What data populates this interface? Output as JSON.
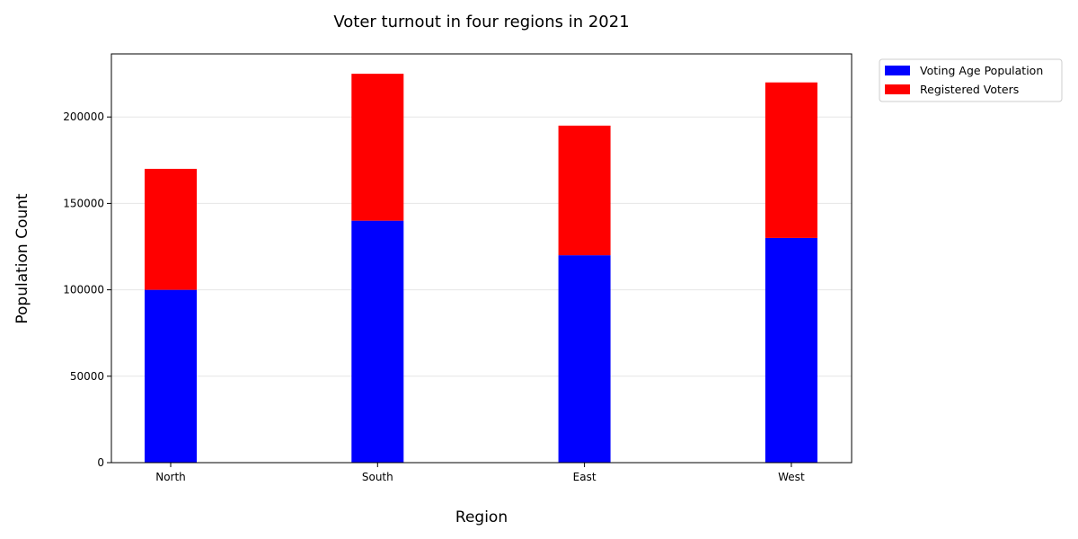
{
  "chart_data": {
    "type": "bar",
    "stacked": true,
    "title": "Voter turnout in four regions in 2021",
    "xlabel": "Region",
    "ylabel": "Population Count",
    "categories": [
      "North",
      "South",
      "East",
      "West"
    ],
    "series": [
      {
        "name": "Voting Age Population",
        "color": "#0000ff",
        "values": [
          100000,
          140000,
          120000,
          130000
        ]
      },
      {
        "name": "Registered Voters",
        "color": "#ff0000",
        "values": [
          70000,
          85000,
          75000,
          90000
        ]
      }
    ],
    "ylim": [
      0,
      236500
    ],
    "yticks": [
      0,
      50000,
      100000,
      150000,
      200000
    ],
    "grid": "y",
    "legend_position": "outside-top-right"
  }
}
